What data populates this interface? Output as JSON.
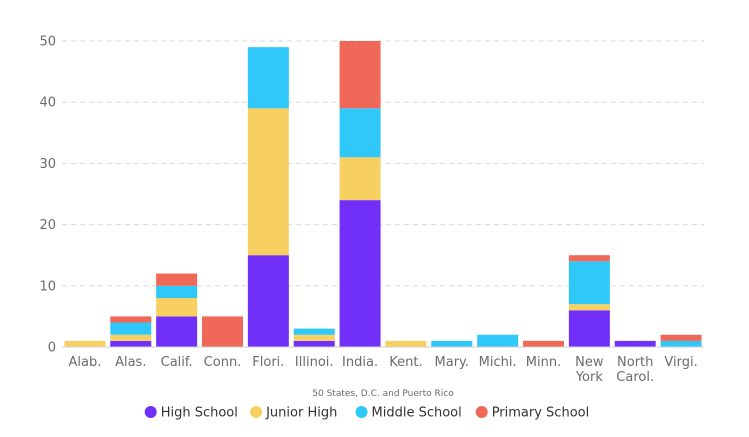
{
  "chart_data": {
    "type": "bar",
    "stacked": true,
    "title": "",
    "xlabel": "50 States, D.C. and Puerto Rico",
    "ylabel": "",
    "ylim": [
      0,
      50
    ],
    "yticks": [
      0,
      10,
      20,
      30,
      40,
      50
    ],
    "grid": true,
    "legend_position": "bottom",
    "categories": [
      [
        "Alab."
      ],
      [
        "Alas."
      ],
      [
        "Calif."
      ],
      [
        "Conn."
      ],
      [
        "Flori."
      ],
      [
        "Illinoi."
      ],
      [
        "India."
      ],
      [
        "Kent."
      ],
      [
        "Mary."
      ],
      [
        "Michi."
      ],
      [
        "Minn."
      ],
      [
        "New",
        "York"
      ],
      [
        "North",
        "Carol."
      ],
      [
        "Virgi."
      ]
    ],
    "series": [
      {
        "name": "High School",
        "color": "#7030f8",
        "values": [
          0,
          1,
          5,
          0,
          15,
          1,
          24,
          0,
          0,
          0,
          0,
          6,
          1,
          0
        ]
      },
      {
        "name": "Junior High",
        "color": "#f8d062",
        "values": [
          1,
          1,
          3,
          0,
          24,
          1,
          7,
          1,
          0,
          0,
          0,
          1,
          0,
          0
        ]
      },
      {
        "name": "Middle School",
        "color": "#30c8f8",
        "values": [
          0,
          2,
          2,
          0,
          10,
          1,
          8,
          0,
          1,
          2,
          0,
          7,
          0,
          1
        ]
      },
      {
        "name": "Primary School",
        "color": "#f06858",
        "values": [
          0,
          1,
          2,
          5,
          0,
          0,
          11,
          0,
          0,
          0,
          1,
          1,
          0,
          1
        ]
      }
    ]
  }
}
